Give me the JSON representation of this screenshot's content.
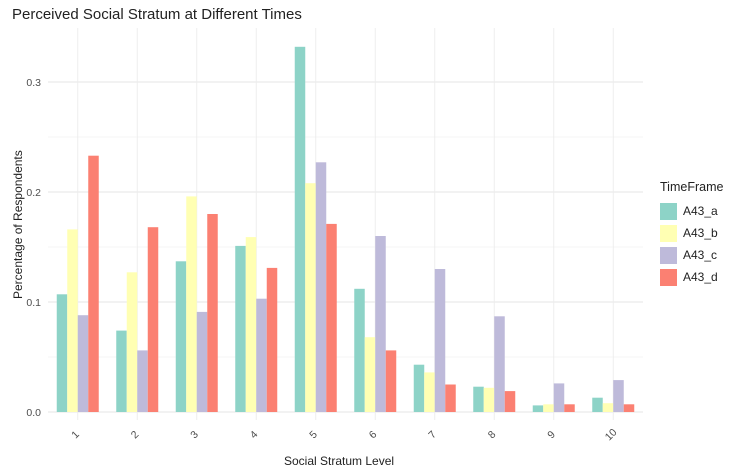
{
  "chart_data": {
    "type": "bar",
    "title": "Perceived Social Stratum at Different Times",
    "xlabel": "Social Stratum Level",
    "ylabel": "Percentage of Respondents",
    "categories": [
      "1",
      "2",
      "3",
      "4",
      "5",
      "6",
      "7",
      "8",
      "9",
      "10"
    ],
    "ylim": [
      0,
      0.34
    ],
    "yticks": [
      0.0,
      0.1,
      0.2,
      0.3
    ],
    "ytick_labels": [
      "0.0",
      "0.1",
      "0.2",
      "0.3"
    ],
    "legend_title": "TimeFrame",
    "legend_position": "right",
    "grid": true,
    "series": [
      {
        "name": "A43_a",
        "color": "#8DD3C7",
        "values": [
          0.107,
          0.074,
          0.137,
          0.151,
          0.332,
          0.112,
          0.043,
          0.023,
          0.006,
          0.013
        ]
      },
      {
        "name": "A43_b",
        "color": "#FFFFB3",
        "values": [
          0.166,
          0.127,
          0.196,
          0.159,
          0.208,
          0.068,
          0.036,
          0.022,
          0.007,
          0.008
        ]
      },
      {
        "name": "A43_c",
        "color": "#BEBADA",
        "values": [
          0.088,
          0.056,
          0.091,
          0.103,
          0.227,
          0.16,
          0.13,
          0.087,
          0.026,
          0.029
        ]
      },
      {
        "name": "A43_d",
        "color": "#FB8072",
        "values": [
          0.233,
          0.168,
          0.18,
          0.131,
          0.171,
          0.056,
          0.025,
          0.019,
          0.007,
          0.007
        ]
      }
    ]
  }
}
